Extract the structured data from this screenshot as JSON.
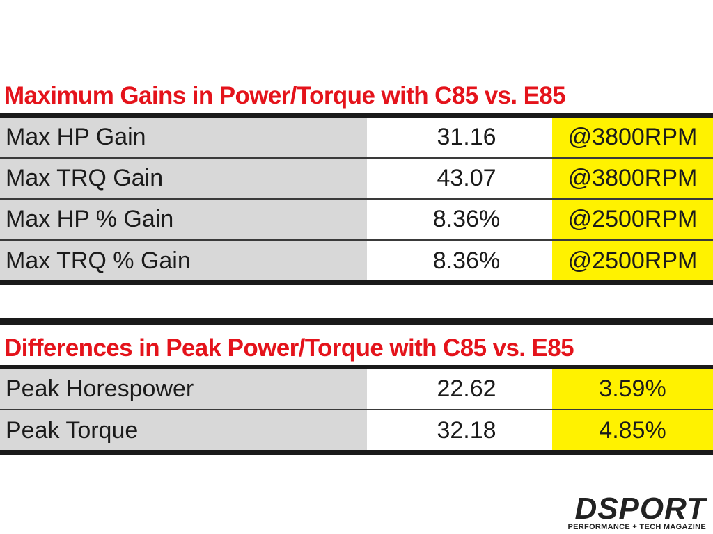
{
  "table1": {
    "title": "Maximum Gains in Power/Torque with C85 vs. E85",
    "rows": [
      {
        "label": "Max HP Gain",
        "value": "31.16",
        "note": "@3800RPM"
      },
      {
        "label": "Max TRQ Gain",
        "value": "43.07",
        "note": "@3800RPM"
      },
      {
        "label": "Max HP % Gain",
        "value": "8.36%",
        "note": "@2500RPM"
      },
      {
        "label": "Max TRQ % Gain",
        "value": "8.36%",
        "note": "@2500RPM"
      }
    ]
  },
  "table2": {
    "title": "Differences in Peak Power/Torque with C85 vs. E85",
    "rows": [
      {
        "label": "Peak Horespower",
        "value": "22.62",
        "note": "3.59%"
      },
      {
        "label": "Peak Torque",
        "value": "32.18",
        "note": "4.85%"
      }
    ]
  },
  "logo": {
    "name": "DSPORT",
    "tagline": "PERFORMANCE + TECH MAGAZINE"
  },
  "colors": {
    "title_red": "#e4131b",
    "highlight_yellow": "#fff200",
    "label_gray": "#d8d8d8"
  }
}
